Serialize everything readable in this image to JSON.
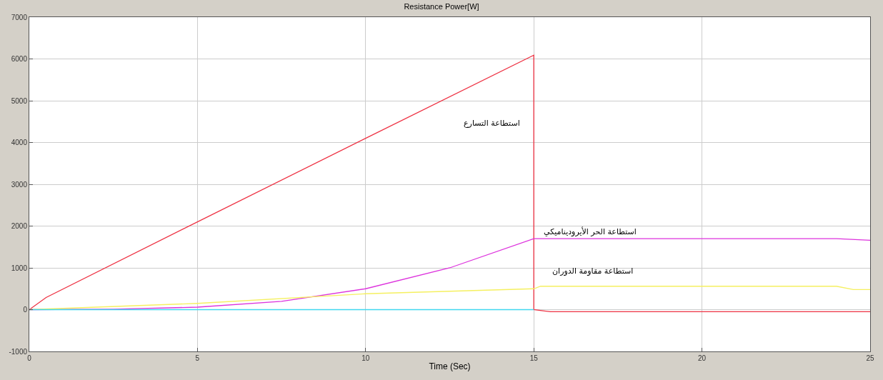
{
  "chart_data": {
    "type": "line",
    "title": "Resistance Power[W]",
    "xlabel": "Time (Sec)",
    "xlim": [
      0,
      25
    ],
    "xticks": [
      0,
      5,
      10,
      15,
      20,
      25
    ],
    "ylim": [
      -1000,
      7000
    ],
    "yticks": [
      -1000,
      0,
      1000,
      2000,
      3000,
      4000,
      5000,
      6000,
      7000
    ],
    "grid": true,
    "line_style": "solid",
    "marker": "none",
    "series": [
      {
        "color": "#ee3344",
        "x": [
          0,
          0.5,
          5,
          10,
          15,
          15,
          15.5,
          25
        ],
        "values": [
          0,
          290,
          2100,
          4100,
          6090,
          0,
          -50,
          -50
        ]
      },
      {
        "color": "#dd33dd",
        "x": [
          0,
          2.5,
          5,
          7.5,
          10,
          12.5,
          15,
          24,
          25
        ],
        "values": [
          0,
          10,
          60,
          200,
          500,
          1000,
          1700,
          1700,
          1660
        ]
      },
      {
        "color": "#f5f060",
        "x": [
          0,
          5,
          10,
          15,
          15.2,
          24,
          24.5,
          25
        ],
        "values": [
          0,
          150,
          380,
          500,
          560,
          560,
          480,
          480
        ]
      },
      {
        "color": "#40d8f0",
        "x": [
          0,
          15
        ],
        "values": [
          0,
          0
        ]
      }
    ],
    "annotations": [
      "استطاعة التسارع",
      "استطاعة الحر الأيروديناميكي",
      "استطاعة مقاومة الدوران"
    ]
  }
}
